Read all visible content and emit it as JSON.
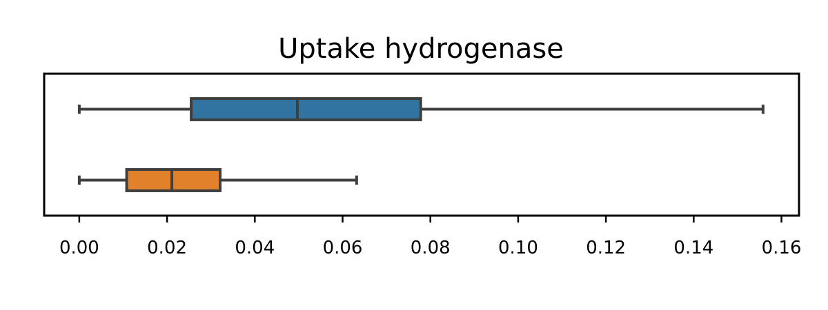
{
  "chart_data": {
    "type": "boxplot",
    "orientation": "horizontal",
    "title": "Uptake hydrogenase",
    "xlabel": "",
    "ylabel": "",
    "xlim": [
      -0.008,
      0.164
    ],
    "xticks": [
      0.0,
      0.02,
      0.04,
      0.06,
      0.08,
      0.1,
      0.12,
      0.14,
      0.16
    ],
    "xtick_labels": [
      "0.00",
      "0.02",
      "0.04",
      "0.06",
      "0.08",
      "0.10",
      "0.12",
      "0.14",
      "0.16"
    ],
    "grid": false,
    "series": [
      {
        "whisker_low": 0.0,
        "q1": 0.0255,
        "median": 0.0497,
        "q3": 0.0778,
        "whisker_high": 0.1558,
        "color": "#3274a1"
      },
      {
        "whisker_low": 0.0,
        "q1": 0.0108,
        "median": 0.0211,
        "q3": 0.0321,
        "whisker_high": 0.0632,
        "color": "#e1812c"
      }
    ],
    "line_color": "#3f3f3f"
  }
}
